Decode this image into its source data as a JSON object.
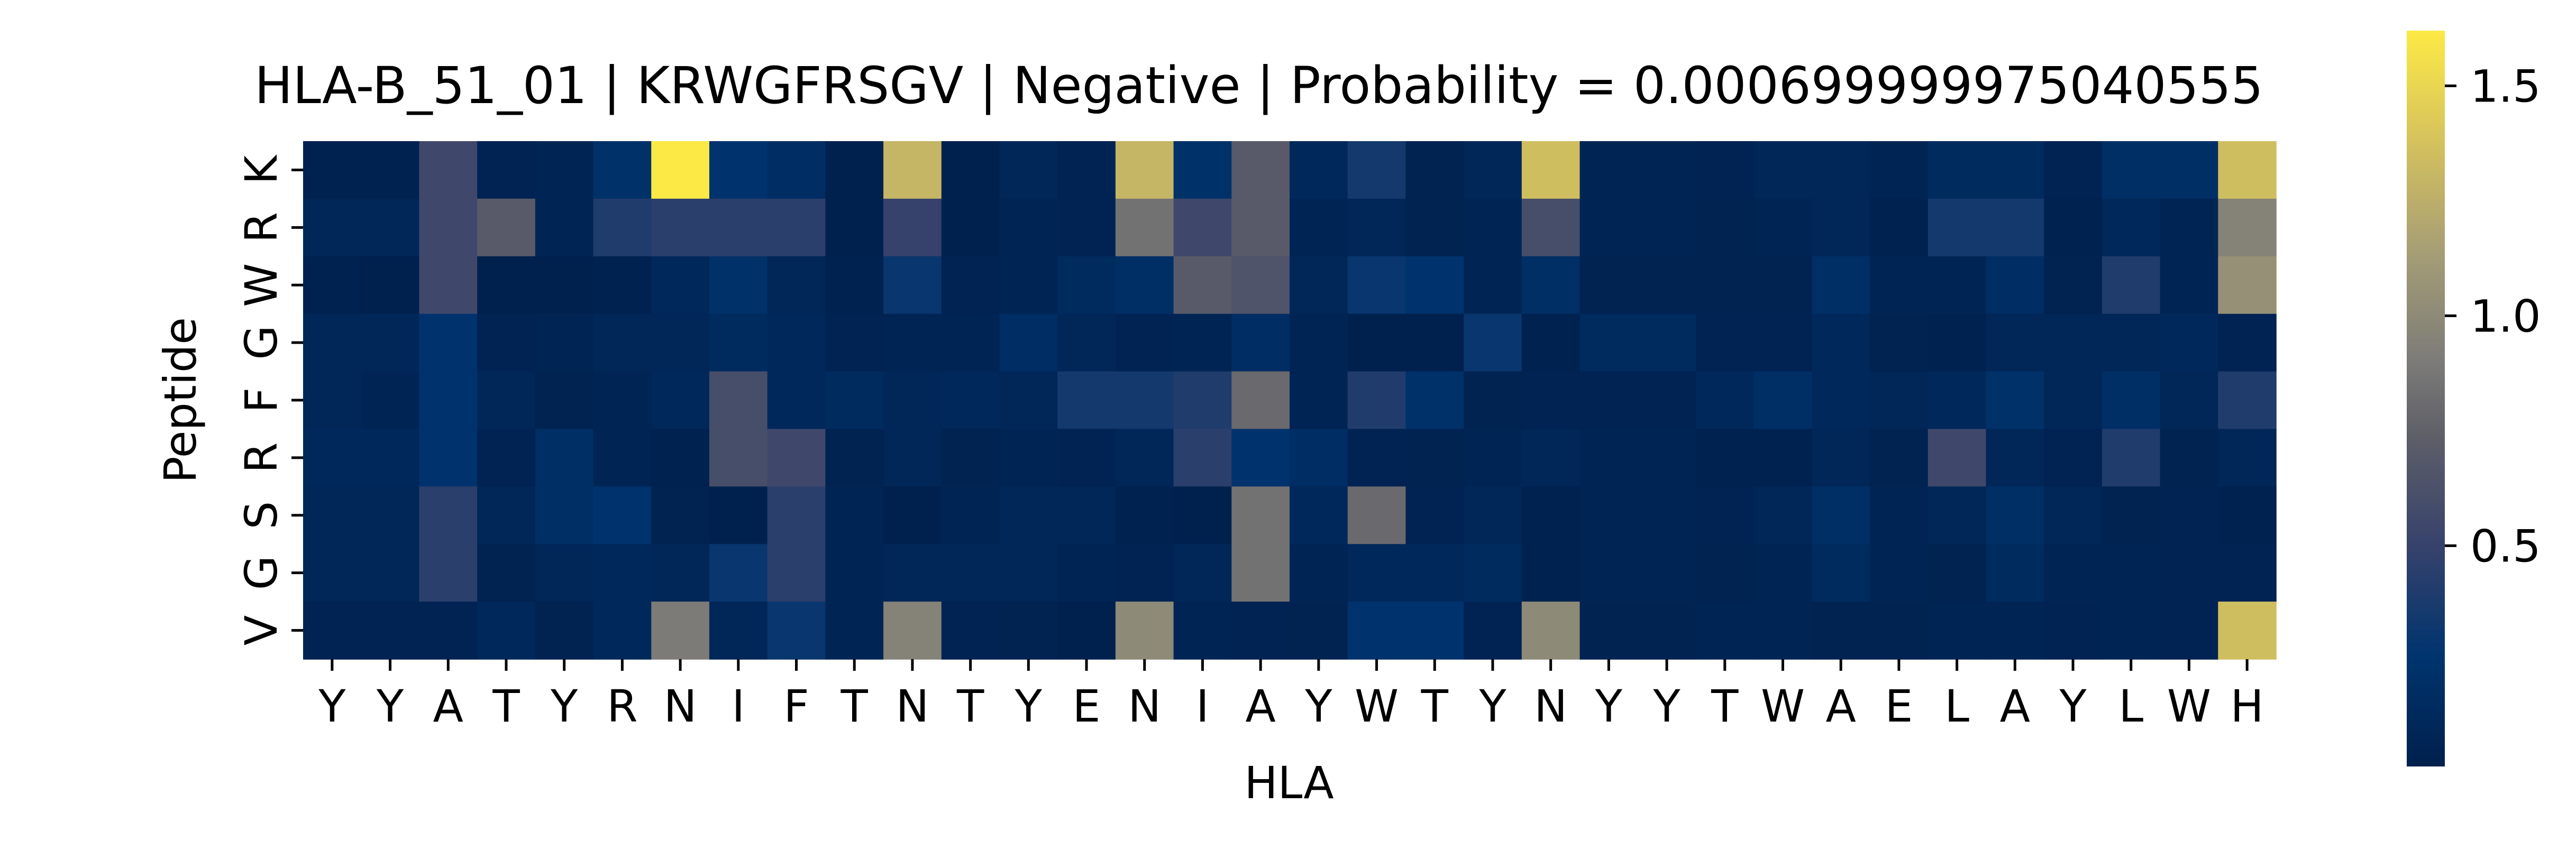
{
  "chart_data": {
    "type": "heatmap",
    "title": "HLA-B_51_01 | KRWGFRSGV | Negative | Probability = 0.000699999975040555",
    "xlabel": "HLA",
    "ylabel": "Peptide",
    "x_categories": [
      "Y",
      "Y",
      "A",
      "T",
      "Y",
      "R",
      "N",
      "I",
      "F",
      "T",
      "N",
      "T",
      "Y",
      "E",
      "N",
      "I",
      "A",
      "Y",
      "W",
      "T",
      "Y",
      "N",
      "Y",
      "Y",
      "T",
      "W",
      "A",
      "E",
      "L",
      "A",
      "Y",
      "L",
      "W",
      "H"
    ],
    "y_categories": [
      "K",
      "R",
      "W",
      "G",
      "F",
      "R",
      "S",
      "G",
      "V"
    ],
    "colormap": "cividis",
    "vmin": 0.02,
    "vmax": 1.62,
    "colorbar_ticks": [
      0.5,
      1.0,
      1.5
    ],
    "colorbar_tick_labels": [
      "0.5",
      "1.0",
      "1.5"
    ],
    "values": [
      [
        0.04,
        0.04,
        0.55,
        0.06,
        0.08,
        0.22,
        1.62,
        0.25,
        0.18,
        0.03,
        1.3,
        0.03,
        0.1,
        0.06,
        1.3,
        0.22,
        0.7,
        0.12,
        0.35,
        0.05,
        0.1,
        1.35,
        0.08,
        0.08,
        0.06,
        0.1,
        0.1,
        0.08,
        0.15,
        0.15,
        0.06,
        0.2,
        0.2,
        1.35
      ],
      [
        0.1,
        0.1,
        0.55,
        0.7,
        0.08,
        0.4,
        0.45,
        0.45,
        0.45,
        0.03,
        0.5,
        0.03,
        0.08,
        0.06,
        0.85,
        0.55,
        0.7,
        0.07,
        0.1,
        0.05,
        0.08,
        0.6,
        0.08,
        0.08,
        0.05,
        0.08,
        0.1,
        0.04,
        0.35,
        0.35,
        0.04,
        0.12,
        0.08,
        0.95
      ],
      [
        0.04,
        0.03,
        0.55,
        0.03,
        0.03,
        0.04,
        0.12,
        0.22,
        0.1,
        0.04,
        0.3,
        0.06,
        0.08,
        0.15,
        0.2,
        0.7,
        0.65,
        0.1,
        0.3,
        0.25,
        0.08,
        0.2,
        0.05,
        0.05,
        0.05,
        0.05,
        0.2,
        0.08,
        0.08,
        0.18,
        0.05,
        0.4,
        0.08,
        1.05
      ],
      [
        0.1,
        0.1,
        0.25,
        0.06,
        0.08,
        0.1,
        0.1,
        0.15,
        0.12,
        0.06,
        0.08,
        0.08,
        0.18,
        0.1,
        0.06,
        0.08,
        0.18,
        0.08,
        0.02,
        0.02,
        0.3,
        0.04,
        0.15,
        0.15,
        0.06,
        0.06,
        0.12,
        0.05,
        0.04,
        0.1,
        0.1,
        0.1,
        0.12,
        0.06
      ],
      [
        0.1,
        0.08,
        0.25,
        0.1,
        0.05,
        0.08,
        0.12,
        0.6,
        0.12,
        0.15,
        0.1,
        0.12,
        0.1,
        0.35,
        0.35,
        0.4,
        0.8,
        0.08,
        0.4,
        0.22,
        0.05,
        0.06,
        0.06,
        0.06,
        0.12,
        0.2,
        0.12,
        0.1,
        0.12,
        0.22,
        0.1,
        0.2,
        0.1,
        0.4
      ],
      [
        0.12,
        0.12,
        0.25,
        0.06,
        0.2,
        0.08,
        0.04,
        0.6,
        0.55,
        0.05,
        0.1,
        0.05,
        0.08,
        0.06,
        0.1,
        0.45,
        0.25,
        0.18,
        0.06,
        0.05,
        0.08,
        0.1,
        0.08,
        0.08,
        0.04,
        0.04,
        0.1,
        0.05,
        0.55,
        0.1,
        0.06,
        0.4,
        0.05,
        0.1
      ],
      [
        0.1,
        0.1,
        0.45,
        0.1,
        0.2,
        0.25,
        0.05,
        0.03,
        0.45,
        0.08,
        0.02,
        0.08,
        0.1,
        0.1,
        0.04,
        0.03,
        0.85,
        0.12,
        0.8,
        0.06,
        0.1,
        0.04,
        0.08,
        0.08,
        0.06,
        0.1,
        0.2,
        0.08,
        0.1,
        0.2,
        0.1,
        0.05,
        0.06,
        0.04
      ],
      [
        0.1,
        0.1,
        0.45,
        0.05,
        0.1,
        0.12,
        0.1,
        0.3,
        0.45,
        0.08,
        0.1,
        0.1,
        0.1,
        0.08,
        0.06,
        0.1,
        0.85,
        0.08,
        0.12,
        0.12,
        0.15,
        0.04,
        0.08,
        0.08,
        0.05,
        0.08,
        0.15,
        0.08,
        0.05,
        0.15,
        0.08,
        0.08,
        0.06,
        0.06
      ],
      [
        0.06,
        0.06,
        0.06,
        0.12,
        0.05,
        0.12,
        0.9,
        0.1,
        0.3,
        0.08,
        0.95,
        0.06,
        0.05,
        0.03,
        1.0,
        0.08,
        0.06,
        0.05,
        0.25,
        0.25,
        0.06,
        1.0,
        0.05,
        0.05,
        0.08,
        0.08,
        0.05,
        0.05,
        0.08,
        0.08,
        0.06,
        0.08,
        0.06,
        1.35
      ]
    ]
  }
}
